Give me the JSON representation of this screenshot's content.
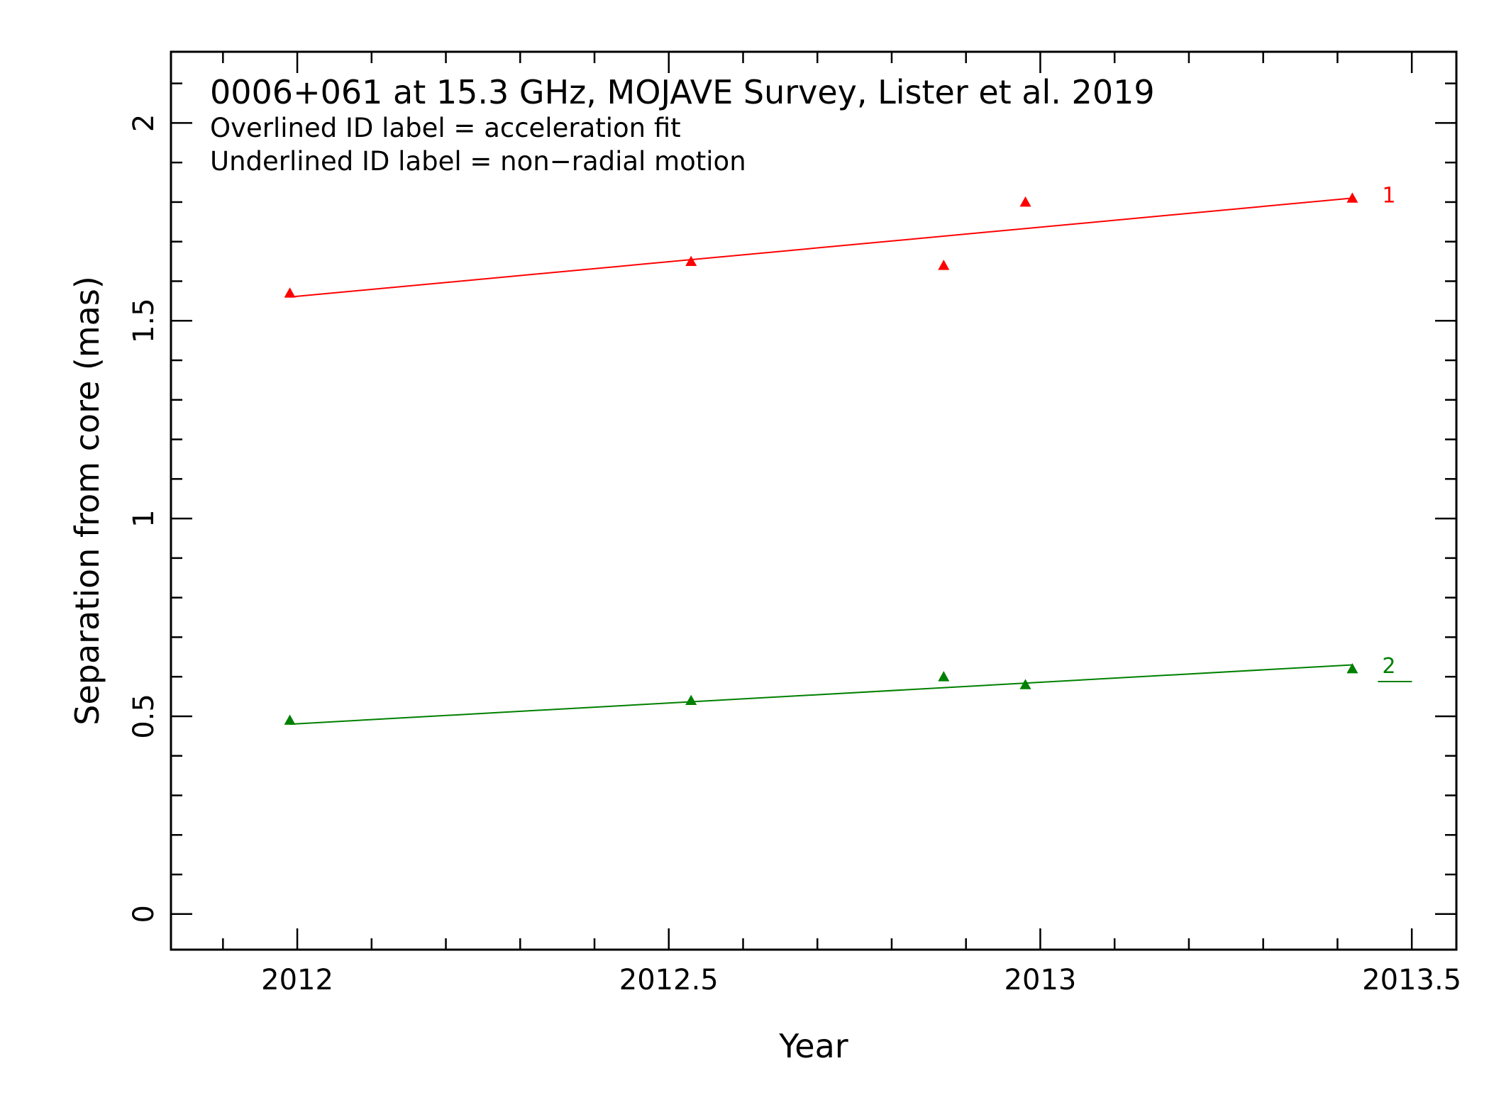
{
  "chart_data": {
    "type": "scatter",
    "title": "0006+061 at 15.3 GHz, MOJAVE Survey, Lister et al. 2019",
    "notes": [
      "Overlined ID label = acceleration fit",
      "Underlined ID label = non−radial motion"
    ],
    "xlabel": "Year",
    "ylabel": "Separation from core (mas)",
    "xlim": [
      2011.83,
      2013.56
    ],
    "ylim": [
      -0.09,
      2.18
    ],
    "x_ticks": [
      2012,
      2012.5,
      2013,
      2013.5
    ],
    "x_tick_labels": [
      "2012",
      "2012.5",
      "2013",
      "2013.5"
    ],
    "y_ticks": [
      0,
      0.5,
      1,
      1.5,
      2
    ],
    "y_tick_labels": [
      "0",
      "0.5",
      "1",
      "1.5",
      "2"
    ],
    "x_minor_step": 0.1,
    "y_minor_step": 0.1,
    "grid": false,
    "legend": "none",
    "series": [
      {
        "id_label": "1",
        "underlined": false,
        "color": "#ff0000",
        "marker": "triangle",
        "points": [
          {
            "x": 2011.99,
            "y": 1.57
          },
          {
            "x": 2012.53,
            "y": 1.65
          },
          {
            "x": 2012.87,
            "y": 1.64
          },
          {
            "x": 2012.98,
            "y": 1.8
          },
          {
            "x": 2013.42,
            "y": 1.81
          }
        ],
        "fit": {
          "x": [
            2011.99,
            2013.42
          ],
          "y": [
            1.56,
            1.81
          ]
        }
      },
      {
        "id_label": "2",
        "underlined": true,
        "color": "#008000",
        "marker": "triangle",
        "points": [
          {
            "x": 2011.99,
            "y": 0.49
          },
          {
            "x": 2012.53,
            "y": 0.54
          },
          {
            "x": 2012.87,
            "y": 0.6
          },
          {
            "x": 2012.98,
            "y": 0.58
          },
          {
            "x": 2013.42,
            "y": 0.62
          }
        ],
        "fit": {
          "x": [
            2011.99,
            2013.42
          ],
          "y": [
            0.48,
            0.63
          ]
        }
      }
    ]
  }
}
